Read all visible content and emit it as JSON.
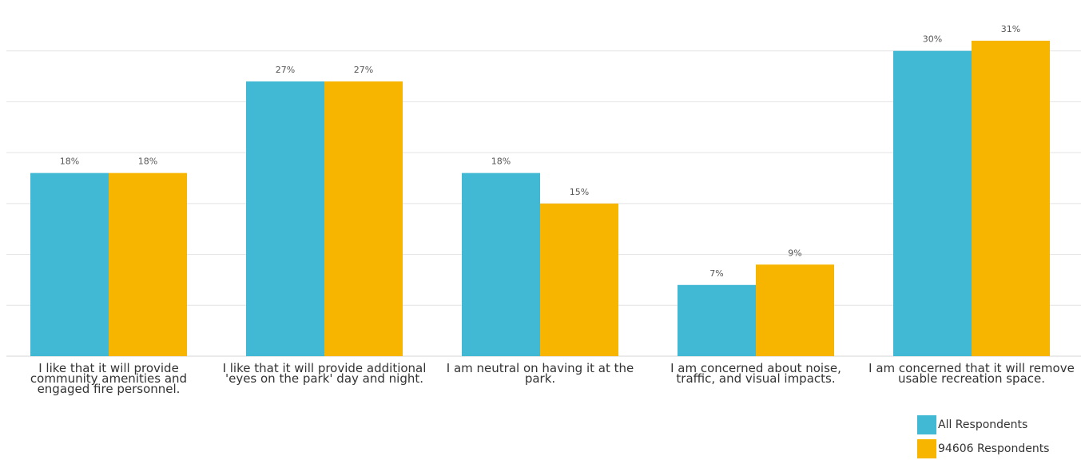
{
  "chart_data": {
    "type": "bar",
    "categories": [
      "I like that it will provide community amenities and engaged fire personnel.",
      "I like that it will provide additional 'eyes on the park' day and night.",
      "I am neutral on having it at the park.",
      "I am concerned about noise, traffic, and visual impacts.",
      "I am concerned that it will remove usable recreation space."
    ],
    "series": [
      {
        "name": "All Respondents",
        "values": [
          18,
          27,
          18,
          7,
          30
        ],
        "labels": [
          "18%",
          "27%",
          "18%",
          "7%",
          "30%"
        ],
        "color": "#41B8D4"
      },
      {
        "name": "94606 Respondents",
        "values": [
          18,
          27,
          15,
          9,
          31
        ],
        "labels": [
          "18%",
          "27%",
          "15%",
          "9%",
          "31%"
        ],
        "color": "#F8B500"
      }
    ],
    "ylim": [
      0,
      35
    ],
    "grid": true,
    "legend": "bottom-right"
  }
}
